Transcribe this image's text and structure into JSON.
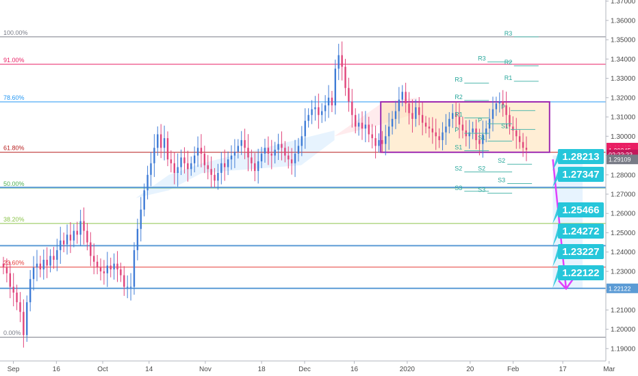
{
  "chart_data": {
    "type": "candlestick",
    "y_range": [
      1.185,
      1.372
    ],
    "x_range_days": [
      0,
      182
    ],
    "y_ticks": [
      "1.37000",
      "1.36000",
      "1.35000",
      "1.34000",
      "1.33000",
      "1.32000",
      "1.31000",
      "1.30000",
      "1.29000",
      "1.28000",
      "1.27000",
      "1.26000",
      "1.25000",
      "1.24000",
      "1.23000",
      "1.22000",
      "1.21000",
      "1.20000",
      "1.19000"
    ],
    "x_ticks": [
      {
        "label": "Sep",
        "day": 3
      },
      {
        "label": "16",
        "day": 16
      },
      {
        "label": "Oct",
        "day": 30
      },
      {
        "label": "14",
        "day": 44
      },
      {
        "label": "Nov",
        "day": 61
      },
      {
        "label": "18",
        "day": 78
      },
      {
        "label": "Dec",
        "day": 91
      },
      {
        "label": "16",
        "day": 106
      },
      {
        "label": "2020",
        "day": 122
      },
      {
        "label": "20",
        "day": 141
      },
      {
        "label": "Feb",
        "day": 154
      },
      {
        "label": "17",
        "day": 169
      },
      {
        "label": "Mar",
        "day": 183
      }
    ],
    "fib_levels": [
      {
        "label": "100.00%",
        "value": 1.3515,
        "color": "#787b86"
      },
      {
        "label": "91.00%",
        "value": 1.3373,
        "color": "#e91e63"
      },
      {
        "label": "78.60%",
        "value": 1.3178,
        "color": "#2196f3"
      },
      {
        "label": "61.80%",
        "value": 1.2917,
        "color": "#b71c1c"
      },
      {
        "label": "50.00%",
        "value": 1.2732,
        "color": "#4caf50"
      },
      {
        "label": "38.20%",
        "value": 1.2548,
        "color": "#8bc34a"
      },
      {
        "label": "23.60%",
        "value": 1.2322,
        "color": "#e53935"
      },
      {
        "label": "0.00%",
        "value": 1.1959,
        "color": "#787b86"
      }
    ],
    "support_lines": [
      {
        "value": 1.2735,
        "color": "#5b9bd5"
      },
      {
        "value": 1.2433,
        "color": "#5b9bd5"
      },
      {
        "value": 1.2212,
        "color": "#5b9bd5"
      }
    ],
    "pivot_labels": [
      {
        "label": "R3",
        "day": 153,
        "value": 1.3515
      },
      {
        "label": "R3",
        "day": 145,
        "value": 1.3385
      },
      {
        "label": "R2",
        "day": 153,
        "value": 1.3365
      },
      {
        "label": "R1",
        "day": 153,
        "value": 1.3285
      },
      {
        "label": "R3",
        "day": 138,
        "value": 1.3275
      },
      {
        "label": "R2",
        "day": 138,
        "value": 1.3185
      },
      {
        "label": "P",
        "day": 152,
        "value": 1.3133
      },
      {
        "label": "R1",
        "day": 138,
        "value": 1.3095
      },
      {
        "label": "P",
        "day": 145,
        "value": 1.3065
      },
      {
        "label": "S1",
        "day": 152,
        "value": 1.3035
      },
      {
        "label": "P",
        "day": 138,
        "value": 1.3015
      },
      {
        "label": "S1",
        "day": 145,
        "value": 1.2975
      },
      {
        "label": "S1",
        "day": 138,
        "value": 1.2925
      },
      {
        "label": "S2",
        "day": 151,
        "value": 1.2855
      },
      {
        "label": "S2",
        "day": 138,
        "value": 1.2815
      },
      {
        "label": "S2",
        "day": 145,
        "value": 1.2815
      },
      {
        "label": "S3",
        "day": 151,
        "value": 1.2755
      },
      {
        "label": "S3",
        "day": 138,
        "value": 1.2715
      },
      {
        "label": "S3",
        "day": 145,
        "value": 1.2705
      }
    ],
    "range_box": {
      "day_start": 114,
      "day_end": 165,
      "top": 1.3178,
      "bottom": 1.2917
    },
    "target_labels": [
      "1.28213",
      "1.27347",
      "1.25466",
      "1.24272",
      "1.23227",
      "1.22122"
    ],
    "price_badges": [
      {
        "label": "1.29407",
        "value": 1.2941,
        "color": "#e91e63"
      },
      {
        "label": "1.29345",
        "value": 1.2926,
        "color": "#e91e63"
      },
      {
        "label": "02:33:33",
        "value": 1.2906,
        "color": "#c2185b"
      },
      {
        "label": "1.29109",
        "value": 1.288,
        "color": "#787b86"
      },
      {
        "label": "1.22122",
        "value": 1.2212,
        "color": "#5b9bd5"
      }
    ],
    "closes": [
      1.232,
      1.229,
      1.222,
      1.219,
      1.214,
      1.209,
      1.197,
      1.214,
      1.226,
      1.232,
      1.234,
      1.231,
      1.236,
      1.233,
      1.238,
      1.236,
      1.241,
      1.246,
      1.244,
      1.249,
      1.246,
      1.251,
      1.249,
      1.256,
      1.251,
      1.245,
      1.238,
      1.235,
      1.232,
      1.23,
      1.229,
      1.233,
      1.231,
      1.234,
      1.231,
      1.228,
      1.222,
      1.222,
      1.222,
      1.241,
      1.252,
      1.262,
      1.272,
      1.28,
      1.286,
      1.294,
      1.301,
      1.294,
      1.299,
      1.288,
      1.286,
      1.281,
      1.284,
      1.289,
      1.286,
      1.283,
      1.286,
      1.29,
      1.294,
      1.291,
      1.285,
      1.283,
      1.28,
      1.277,
      1.281,
      1.286,
      1.284,
      1.288,
      1.29,
      1.292,
      1.295,
      1.298,
      1.294,
      1.289,
      1.286,
      1.282,
      1.287,
      1.291,
      1.294,
      1.291,
      1.29,
      1.293,
      1.296,
      1.294,
      1.29,
      1.288,
      1.286,
      1.291,
      1.295,
      1.3,
      1.308,
      1.311,
      1.314,
      1.315,
      1.311,
      1.313,
      1.316,
      1.32,
      1.316,
      1.335,
      1.342,
      1.336,
      1.325,
      1.318,
      1.311,
      1.305,
      1.307,
      1.304,
      1.306,
      1.301,
      1.299,
      1.295,
      1.298,
      1.296,
      1.3,
      1.305,
      1.309,
      1.313,
      1.319,
      1.323,
      1.317,
      1.312,
      1.309,
      1.315,
      1.311,
      1.307,
      1.305,
      1.304,
      1.302,
      1.3,
      1.298,
      1.302,
      1.305,
      1.309,
      1.312,
      1.31,
      1.306,
      1.303,
      1.3,
      1.302,
      1.304,
      1.298,
      1.296,
      1.301,
      1.304,
      1.309,
      1.314,
      1.317,
      1.318,
      1.316,
      1.311,
      1.305,
      1.303,
      1.3,
      1.297,
      1.294,
      1.293
    ]
  }
}
